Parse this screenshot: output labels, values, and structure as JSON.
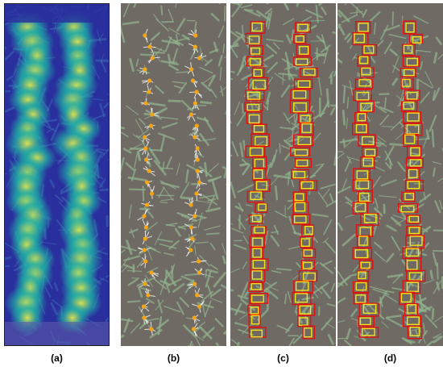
{
  "figure": {
    "panels": [
      {
        "id": "a",
        "label": "(a)",
        "kind": "heatmap"
      },
      {
        "id": "b",
        "label": "(b)",
        "kind": "keypoints"
      },
      {
        "id": "c",
        "label": "(c)",
        "kind": "boxes"
      },
      {
        "id": "d",
        "label": "(d)",
        "kind": "boxes"
      }
    ],
    "colors": {
      "heat_low": "#2a2f9e",
      "heat_mid": "#1fb3a6",
      "heat_high": "#e4e84a",
      "soil": "#6f6a64",
      "leaf": "#8fb08c",
      "keypoint": "#f2a516",
      "box_red": "#e01010",
      "box_yellow": "#f5e21a"
    }
  }
}
